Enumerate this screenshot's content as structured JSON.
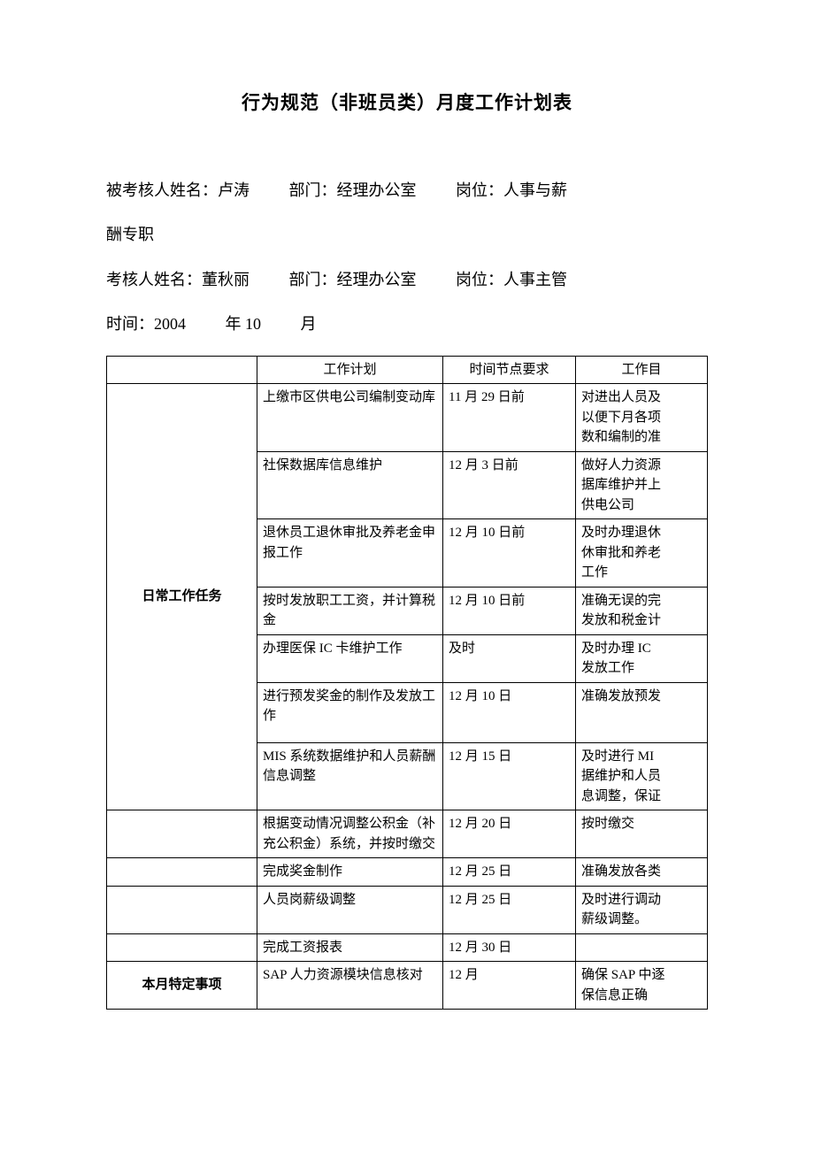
{
  "title": "行为规范（非班员类）月度工作计划表",
  "meta": {
    "assessed_label": "被考核人姓名：",
    "assessed_name": "卢涛",
    "assessed_dept_label": "部门：",
    "assessed_dept": "经理办公室",
    "assessed_post_label": "岗位：",
    "assessed_post": "人事与薪",
    "assessed_post_wrap": "酬专职",
    "assessor_label": "考核人姓名：",
    "assessor_name": "董秋丽",
    "assessor_dept_label": "部门：",
    "assessor_dept": "经理办公室",
    "assessor_post_label": "岗位：",
    "assessor_post": "人事主管",
    "time_label": "时间：",
    "year": "2004",
    "year_unit": "年",
    "month": "10",
    "month_unit": "月"
  },
  "table": {
    "headers": {
      "category": "",
      "plan": "工作计划",
      "time": "时间节点要求",
      "goal": "工作目"
    },
    "section1_label": "日常工作任务",
    "section2_label": "本月特定事项",
    "rows": [
      {
        "plan": "上缴市区供电公司编制变动库",
        "time": "11 月 29 日前",
        "goal": "对进出人员及\n以便下月各项\n数和编制的准"
      },
      {
        "plan": "社保数据库信息维护",
        "time": "12 月 3 日前",
        "goal": "做好人力资源\n据库维护并上\n供电公司"
      },
      {
        "plan": "退休员工退休审批及养老金申报工作",
        "time": "12 月 10 日前",
        "goal": "及时办理退休\n休审批和养老\n工作"
      },
      {
        "plan": "按时发放职工工资，并计算税金",
        "time": "12 月 10 日前",
        "goal": "准确无误的完\n发放和税金计"
      },
      {
        "plan": "办理医保 IC 卡维护工作",
        "time": "及时",
        "goal": "及时办理 IC\n发放工作"
      },
      {
        "plan": "进行预发奖金的制作及发放工作",
        "time": "12 月 10 日",
        "goal": "准确发放预发"
      },
      {
        "plan": "MIS 系统数据维护和人员薪酬信息调整",
        "time": "12 月 15 日",
        "goal": "及时进行 MI\n据维护和人员\n息调整，保证"
      },
      {
        "plan": "根据变动情况调整公积金（补充公积金）系统，并按时缴交",
        "time": "12 月 20 日",
        "goal": "按时缴交"
      },
      {
        "plan": "完成奖金制作",
        "time": "12 月 25 日",
        "goal": "准确发放各类"
      },
      {
        "plan": "人员岗薪级调整",
        "time": "12 月 25 日",
        "goal": "及时进行调动\n薪级调整。"
      },
      {
        "plan": "完成工资报表",
        "time": "12 月 30 日",
        "goal": ""
      },
      {
        "plan": "SAP 人力资源模块信息核对",
        "time": "12 月",
        "goal": "确保 SAP 中逐\n保信息正确"
      }
    ]
  },
  "style": {
    "font_family": "SimSun",
    "title_fontsize": 21,
    "meta_fontsize": 18,
    "table_fontsize": 15,
    "border_color": "#000000",
    "background_color": "#ffffff",
    "text_color": "#000000"
  }
}
